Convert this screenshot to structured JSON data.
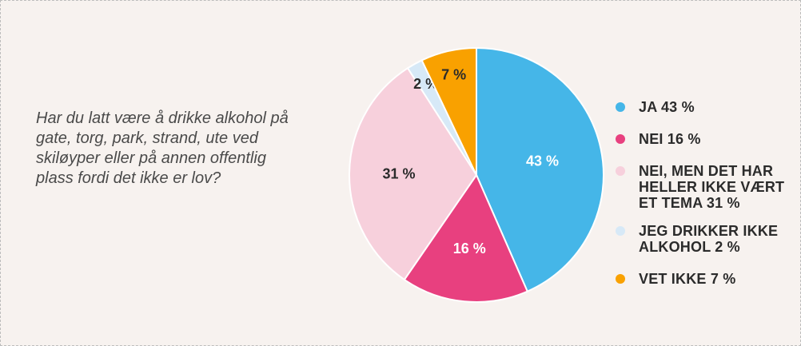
{
  "question": "Har du latt være å drikke alkohol på gate, torg, park, strand, ute ved skiløyper eller på annen offentlig plass fordi det ikke er lov?",
  "chart_data": {
    "type": "pie",
    "title": "",
    "slices": [
      {
        "label": "JA 43 %",
        "value": 43,
        "data_label": "43 %",
        "color": "#45b6e8"
      },
      {
        "label": "NEI 16 %",
        "value": 16,
        "data_label": "16 %",
        "color": "#e8407f"
      },
      {
        "label": "NEI, MEN DET HAR HELLER IKKE VÆRT ET TEMA 31 %",
        "value": 31,
        "data_label": "31 %",
        "color": "#f7d0dc"
      },
      {
        "label": "JEG DRIKKER IKKE ALKOHOL 2 %",
        "value": 2,
        "data_label": "2 %",
        "color": "#d7e9f7"
      },
      {
        "label": "VET IKKE 7 %",
        "value": 7,
        "data_label": "7 %",
        "color": "#f9a100"
      }
    ],
    "legend_position": "right"
  }
}
